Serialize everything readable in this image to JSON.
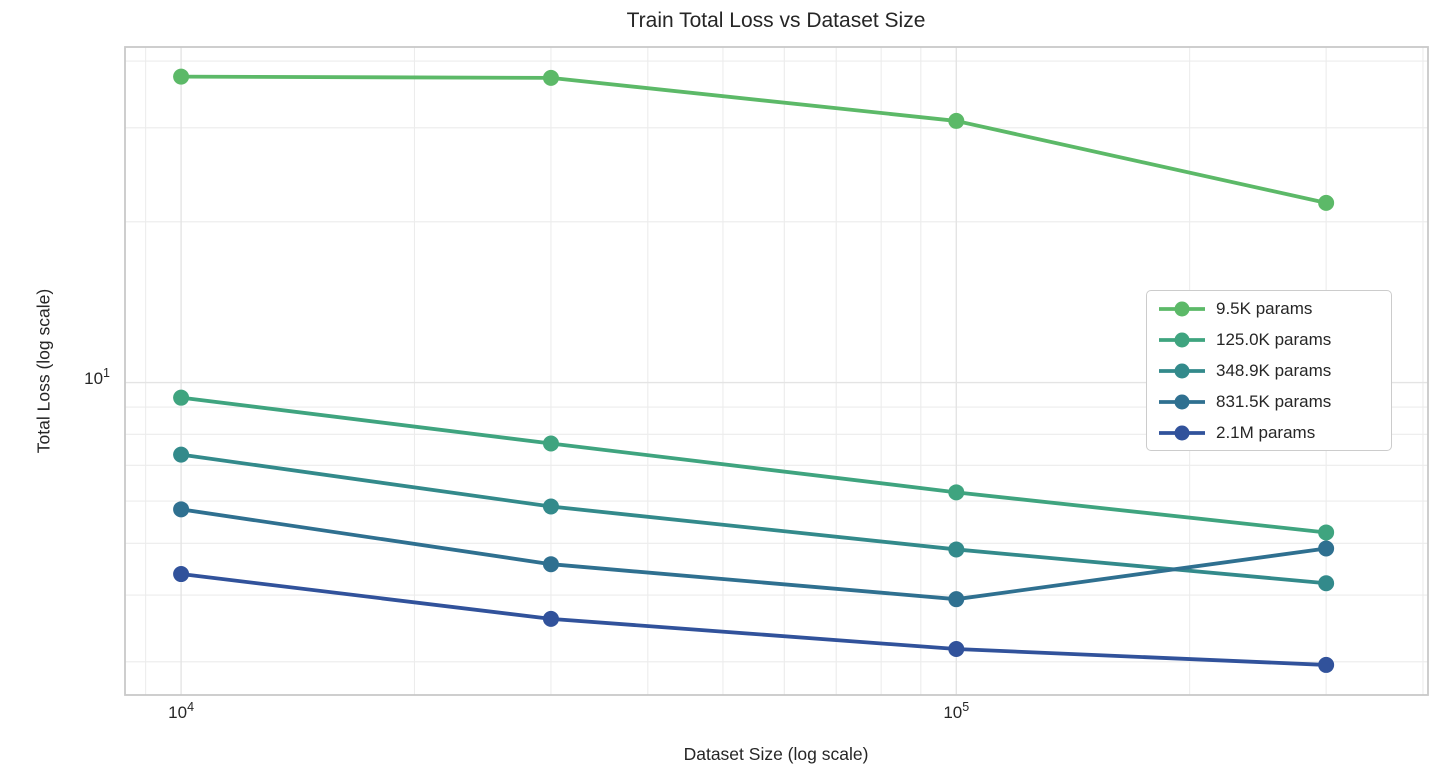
{
  "chart_data": {
    "type": "line",
    "title": "Train Total Loss vs Dataset Size",
    "xlabel": "Dataset Size (log scale)",
    "ylabel": "Total Loss (log scale)",
    "x_scale": "log",
    "y_scale": "log",
    "grid": "both",
    "legend_position": "center right",
    "x": [
      10000,
      30000,
      100000,
      300000
    ],
    "xlim": [
      8465,
      406000
    ],
    "ylim": [
      2.6,
      42.5
    ],
    "x_ticks": [
      {
        "base": "10",
        "exp": "4",
        "value": 10000
      },
      {
        "base": "10",
        "exp": "5",
        "value": 100000
      }
    ],
    "y_ticks": [
      {
        "base": "10",
        "exp": "1",
        "value": 10
      }
    ],
    "series": [
      {
        "name": "9.5K params",
        "color": "#5cb968",
        "values": [
          37.4,
          37.2,
          30.9,
          21.7
        ]
      },
      {
        "name": "125.0K params",
        "color": "#3fa47f",
        "values": [
          9.37,
          7.69,
          6.23,
          5.24
        ]
      },
      {
        "name": "348.9K params",
        "color": "#338a8b",
        "values": [
          7.33,
          5.86,
          4.87,
          4.21
        ]
      },
      {
        "name": "831.5K params",
        "color": "#2f7090",
        "values": [
          5.79,
          4.57,
          3.93,
          4.89
        ]
      },
      {
        "name": "2.1M params",
        "color": "#31529b",
        "values": [
          4.38,
          3.61,
          3.17,
          2.96
        ]
      }
    ],
    "style": {
      "grid_major_color": "#e4e4e4",
      "grid_minor_color": "#ececec",
      "frame_color": "#c9c9c9",
      "text_color": "#262626"
    }
  }
}
